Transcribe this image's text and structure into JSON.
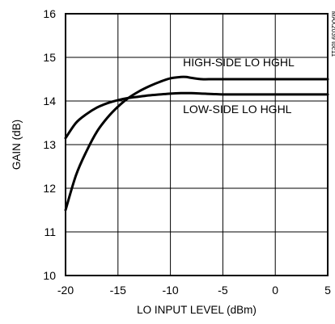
{
  "chart_data": {
    "type": "line",
    "xlabel": "LO INPUT LEVEL (dBm)",
    "ylabel": "GAIN (dB)",
    "xlim": [
      -20,
      5
    ],
    "ylim": [
      10,
      16
    ],
    "xticks": [
      -20,
      -15,
      -10,
      -5,
      0,
      5
    ],
    "yticks": [
      10,
      11,
      12,
      13,
      14,
      15,
      16
    ],
    "xtick_labels": [
      "-20",
      "-15",
      "-10",
      "-5",
      "0",
      "5"
    ],
    "ytick_labels": [
      "10",
      "11",
      "12",
      "13",
      "14",
      "15",
      "16"
    ],
    "grid": true,
    "series": [
      {
        "name": "HIGH-SIDE LO HGHL",
        "x": [
          -20,
          -19,
          -18,
          -17,
          -16,
          -15,
          -14,
          -13,
          -12,
          -11,
          -10,
          -9,
          -8.5,
          -8,
          -7,
          -6,
          -5,
          -4,
          -3,
          -2,
          -1,
          0,
          1,
          2,
          3,
          4,
          5
        ],
        "y": [
          11.5,
          12.3,
          12.85,
          13.3,
          13.62,
          13.87,
          14.07,
          14.22,
          14.34,
          14.44,
          14.52,
          14.55,
          14.55,
          14.53,
          14.5,
          14.5,
          14.5,
          14.5,
          14.5,
          14.5,
          14.5,
          14.5,
          14.5,
          14.5,
          14.5,
          14.5,
          14.5
        ]
      },
      {
        "name": "LOW-SIDE LO HGHL",
        "x": [
          -20,
          -19,
          -18,
          -17,
          -16,
          -15,
          -14,
          -13,
          -12,
          -11,
          -10,
          -9,
          -8,
          -7,
          -6,
          -5,
          -4,
          -3,
          -2,
          -1,
          0,
          1,
          2,
          3,
          4,
          5
        ],
        "y": [
          13.15,
          13.5,
          13.7,
          13.85,
          13.95,
          14.02,
          14.07,
          14.1,
          14.13,
          14.15,
          14.17,
          14.18,
          14.18,
          14.17,
          14.16,
          14.15,
          14.15,
          14.15,
          14.15,
          14.15,
          14.15,
          14.15,
          14.15,
          14.15,
          14.15,
          14.15
        ]
      }
    ],
    "annotations": [
      {
        "text": "HIGH-SIDE LO HGHL",
        "x": -8.8,
        "y": 14.8
      },
      {
        "text": "LOW-SIDE LO HGHL",
        "x": -8.8,
        "y": 13.72
      }
    ],
    "side_id": "MAX2039 toc11"
  }
}
